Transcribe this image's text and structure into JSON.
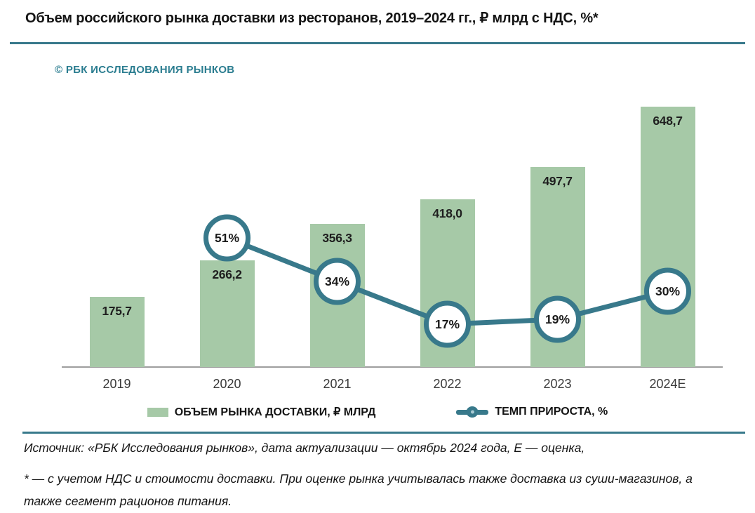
{
  "page": {
    "title": "Объем российского рынка доставки из ресторанов, 2019–2024 гг., ₽ млрд с НДС, %*",
    "copyright": "© РБК ИССЛЕДОВАНИЯ РЫНКОВ",
    "source": "Источник: «РБК Исследования рынков», дата актуализации — октябрь 2024 года, Е — оценка,",
    "footnote": "* — с учетом НДС и стоимости доставки. При оценке рынка учитывалась также доставка из суши-магазинов, а также сегмент рационов питания."
  },
  "colors": {
    "bar_green": "#a6c9a7",
    "line_teal": "#38798b",
    "divider_teal": "#38798b",
    "copyright_teal": "#2b7d90",
    "axis_gray": "#9e9e9e"
  },
  "chart_data": {
    "type": "bar",
    "title": "Объем российского рынка доставки из ресторанов, 2019–2024 гг., ₽ млрд с НДС, %*",
    "categories": [
      "2019",
      "2020",
      "2021",
      "2022",
      "2023",
      "2024Е"
    ],
    "series": [
      {
        "name": "ОБЪЕМ РЫНКА ДОСТАВКИ, ₽ МЛРД",
        "type": "bar",
        "values": [
          175.7,
          266.2,
          356.3,
          418.0,
          497.7,
          648.7
        ],
        "labels": [
          "175,7",
          "266,2",
          "356,3",
          "418,0",
          "497,7",
          "648,7"
        ],
        "color": "#a6c9a7"
      },
      {
        "name": "ТЕМП ПРИРОСТА, %",
        "type": "line",
        "marker": "circle",
        "values": [
          null,
          51,
          34,
          17,
          19,
          30
        ],
        "labels": [
          null,
          "51%",
          "34%",
          "17%",
          "19%",
          "30%"
        ],
        "color": "#38798b"
      }
    ],
    "xlabel": "",
    "ylabel": "",
    "ylim": [
      0,
      700
    ],
    "y2lim": [
      0,
      55
    ],
    "grid": false,
    "legend_position": "bottom"
  },
  "legend": {
    "bar_label": "ОБЪЕМ РЫНКА ДОСТАВКИ, ₽ МЛРД",
    "line_label": "ТЕМП ПРИРОСТА, %"
  }
}
